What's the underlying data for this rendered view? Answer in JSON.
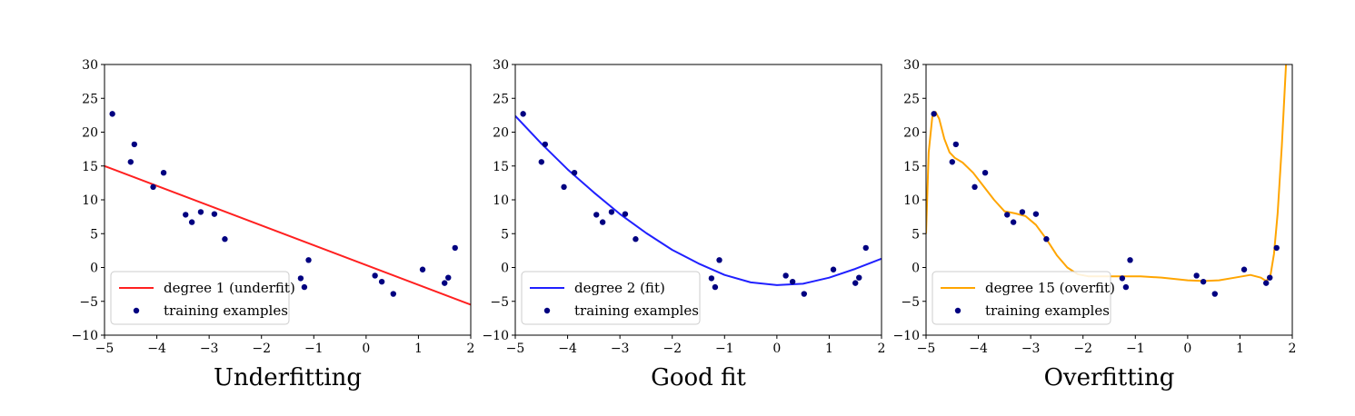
{
  "chart_data": [
    {
      "type": "scatter",
      "title": "Underfitting",
      "xlim": [
        -5,
        2
      ],
      "ylim": [
        -10,
        30
      ],
      "xticks": [
        -5,
        -4,
        -3,
        -2,
        -1,
        0,
        1,
        2
      ],
      "yticks": [
        -10,
        -5,
        0,
        5,
        10,
        15,
        20,
        25,
        30
      ],
      "legend_position": "lower-left",
      "series": [
        {
          "name": "degree 1 (underfit)",
          "kind": "line",
          "color": "#ff2020",
          "x": [
            -5,
            2
          ],
          "y": [
            15.0,
            -5.5
          ]
        },
        {
          "name": "training examples",
          "kind": "scatter",
          "color": "#000080",
          "x": [
            -4.85,
            -4.5,
            -4.43,
            -4.07,
            -3.87,
            -3.45,
            -3.33,
            -3.16,
            -2.9,
            -2.7,
            -1.25,
            -1.18,
            -1.1,
            0.17,
            0.3,
            0.52,
            1.08,
            1.5,
            1.57,
            1.7
          ],
          "y": [
            22.7,
            15.6,
            18.2,
            11.9,
            14.0,
            7.8,
            6.7,
            8.2,
            7.9,
            4.2,
            -1.6,
            -2.9,
            1.1,
            -1.2,
            -2.1,
            -3.9,
            -0.3,
            -2.3,
            -1.5,
            2.9
          ]
        }
      ]
    },
    {
      "type": "scatter",
      "title": "Good fit",
      "xlim": [
        -5,
        2
      ],
      "ylim": [
        -10,
        30
      ],
      "xticks": [
        -5,
        -4,
        -3,
        -2,
        -1,
        0,
        1,
        2
      ],
      "yticks": [
        -10,
        -5,
        0,
        5,
        10,
        15,
        20,
        25,
        30
      ],
      "legend_position": "lower-left",
      "series": [
        {
          "name": "degree 2 (fit)",
          "kind": "line",
          "color": "#2020ff",
          "x": [
            -5.0,
            -4.5,
            -4.0,
            -3.5,
            -3.0,
            -2.5,
            -2.0,
            -1.5,
            -1.0,
            -0.5,
            0.0,
            0.5,
            1.0,
            1.5,
            2.0
          ],
          "y": [
            22.4,
            18.3,
            14.5,
            11.1,
            7.9,
            5.1,
            2.6,
            0.6,
            -1.1,
            -2.2,
            -2.6,
            -2.4,
            -1.5,
            -0.2,
            1.3
          ]
        },
        {
          "name": "training examples",
          "kind": "scatter",
          "color": "#000080",
          "x": [
            -4.85,
            -4.5,
            -4.43,
            -4.07,
            -3.87,
            -3.45,
            -3.33,
            -3.16,
            -2.9,
            -2.7,
            -1.25,
            -1.18,
            -1.1,
            0.17,
            0.3,
            0.52,
            1.08,
            1.5,
            1.57,
            1.7
          ],
          "y": [
            22.7,
            15.6,
            18.2,
            11.9,
            14.0,
            7.8,
            6.7,
            8.2,
            7.9,
            4.2,
            -1.6,
            -2.9,
            1.1,
            -1.2,
            -2.1,
            -3.9,
            -0.3,
            -2.3,
            -1.5,
            2.9
          ]
        }
      ]
    },
    {
      "type": "scatter",
      "title": "Overfitting",
      "xlim": [
        -5,
        2
      ],
      "ylim": [
        -10,
        30
      ],
      "xticks": [
        -5,
        -4,
        -3,
        -2,
        -1,
        0,
        1,
        2
      ],
      "yticks": [
        -10,
        -5,
        0,
        5,
        10,
        15,
        20,
        25,
        30
      ],
      "legend_position": "lower-left",
      "series": [
        {
          "name": "degree 15 (overfit)",
          "kind": "line",
          "color": "#ffa500",
          "x": [
            -5.0,
            -4.95,
            -4.88,
            -4.82,
            -4.75,
            -4.65,
            -4.55,
            -4.45,
            -4.3,
            -4.1,
            -3.9,
            -3.7,
            -3.5,
            -3.3,
            -3.1,
            -2.9,
            -2.7,
            -2.5,
            -2.3,
            -2.1,
            -1.9,
            -1.7,
            -1.5,
            -1.3,
            -1.1,
            -0.9,
            -0.5,
            0.0,
            0.3,
            0.6,
            0.9,
            1.2,
            1.4,
            1.5,
            1.58,
            1.65,
            1.72,
            1.8,
            1.88
          ],
          "y": [
            5.0,
            17.0,
            22.3,
            23.0,
            22.0,
            19.0,
            17.0,
            16.2,
            15.5,
            14.0,
            12.0,
            10.0,
            8.3,
            8.0,
            7.6,
            6.3,
            4.2,
            1.8,
            0.0,
            -1.0,
            -1.3,
            -1.3,
            -1.3,
            -1.3,
            -1.3,
            -1.3,
            -1.5,
            -1.9,
            -2.0,
            -1.9,
            -1.5,
            -1.1,
            -1.5,
            -2.0,
            -1.3,
            2.0,
            8.0,
            18.0,
            30.0
          ]
        },
        {
          "name": "training examples",
          "kind": "scatter",
          "color": "#000080",
          "x": [
            -4.85,
            -4.5,
            -4.43,
            -4.07,
            -3.87,
            -3.45,
            -3.33,
            -3.16,
            -2.9,
            -2.7,
            -1.25,
            -1.18,
            -1.1,
            0.17,
            0.3,
            0.52,
            1.08,
            1.5,
            1.57,
            1.7
          ],
          "y": [
            22.7,
            15.6,
            18.2,
            11.9,
            14.0,
            7.8,
            6.7,
            8.2,
            7.9,
            4.2,
            -1.6,
            -2.9,
            1.1,
            -1.2,
            -2.1,
            -3.9,
            -0.3,
            -2.3,
            -1.5,
            2.9
          ]
        }
      ]
    }
  ]
}
